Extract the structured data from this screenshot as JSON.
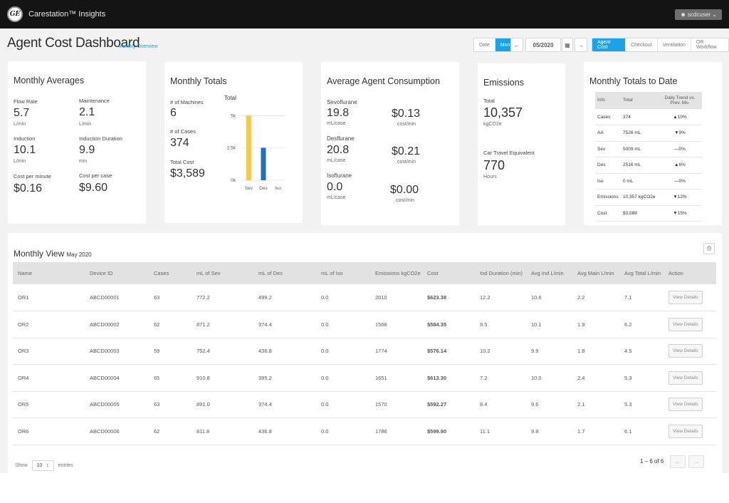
{
  "app": {
    "title": "Carestation™ Insights",
    "user": "scdcuser"
  },
  "header": {
    "title": "Agent Cost Dashboard",
    "subtitle": "Monthly Overview",
    "period_toggle": [
      "Date",
      "Month"
    ],
    "period_active": "Month",
    "date_value": "05/2020",
    "tabs": [
      "Agent Cost",
      "Checkout",
      "Ventilation",
      "OR Workflow"
    ],
    "active_tab": "Agent Cost"
  },
  "monthly_averages": {
    "title": "Monthly Averages",
    "items": [
      {
        "label": "Flow Rate",
        "value": "5.7",
        "unit": "L/min"
      },
      {
        "label": "Maintenance",
        "value": "2.1",
        "unit": "L/min"
      },
      {
        "label": "Induction",
        "value": "10.1",
        "unit": "L/min"
      },
      {
        "label": "Induction Duration",
        "value": "9.9",
        "unit": "min"
      },
      {
        "label": "Cost per minute",
        "value": "$0.16",
        "unit": ""
      },
      {
        "label": "Cost per case",
        "value": "$9.60",
        "unit": ""
      }
    ]
  },
  "monthly_totals": {
    "title": "Monthly Totals",
    "machines_label": "# of Machines",
    "machines": "6",
    "cases_label": "# of Cases",
    "cases": "374",
    "cost_label": "Total Cost",
    "cost": "$3,589"
  },
  "chart_data": {
    "type": "bar",
    "title": "Total",
    "categories": [
      "Sev",
      "Des",
      "Iso"
    ],
    "values": [
      5009,
      2516,
      0
    ],
    "ylim": [
      0,
      5300
    ],
    "yticks": [
      0,
      2500,
      5000
    ],
    "ytick_labels": [
      "0k",
      "2.5k",
      "5k"
    ],
    "colors": [
      "#f7c948",
      "#1f6fc5",
      "#7a5bc2"
    ],
    "grid": true
  },
  "consumption": {
    "title": "Average Agent Consumption",
    "items": [
      {
        "name": "Sevoflurane",
        "value": "19.8",
        "unit": "mL/case",
        "cost": "$0.13",
        "cost_unit": "cost/min"
      },
      {
        "name": "Desflurane",
        "value": "20.8",
        "unit": "mL/case",
        "cost": "$0.21",
        "cost_unit": "cost/min"
      },
      {
        "name": "Isoflurane",
        "value": "0.0",
        "unit": "mL/case",
        "cost": "$0.00",
        "cost_unit": "cost/min"
      }
    ]
  },
  "emissions": {
    "title": "Emissions",
    "total_label": "Total",
    "total": "10,357",
    "total_unit": "kgCO2e",
    "car_label": "Car Travel Equivalent",
    "car": "770",
    "car_unit": "Hours"
  },
  "totals_to_date": {
    "title": "Monthly Totals to Date",
    "headers": [
      "Info",
      "Total",
      "Daily Trend vs. Prev. Mo."
    ],
    "rows": [
      {
        "info": "Cases",
        "total": "374",
        "trend": "▲10%",
        "dir": "up"
      },
      {
        "info": "AA",
        "total": "7526 mL",
        "trend": "▼9%",
        "dir": "down"
      },
      {
        "info": "Sev",
        "total": "5009 mL",
        "trend": "—0%",
        "dir": "flat"
      },
      {
        "info": "Des",
        "total": "2516 mL",
        "trend": "▲6%",
        "dir": "up"
      },
      {
        "info": "Iso",
        "total": "0 mL",
        "trend": "—0%",
        "dir": "flat"
      },
      {
        "info": "Emissions",
        "total": "10,357 kgCO2e",
        "trend": "▼12%",
        "dir": "down"
      },
      {
        "info": "Cost",
        "total": "$3,589",
        "trend": "▼15%",
        "dir": "down"
      }
    ]
  },
  "monthly_view": {
    "title": "Monthly View",
    "period": "May 2020",
    "columns": [
      "Name",
      "Device ID",
      "Cases",
      "mL of Sev",
      "mL of Des",
      "mL of Iso",
      "Emissions kgCO2e",
      "Cost",
      "Ind Duration (min)",
      "Avg Ind L/min",
      "Avg Main L/min",
      "Avg Total L/min",
      "Action"
    ],
    "rows": [
      {
        "name": "OR1",
        "device": "ABCD00001",
        "cases": "63",
        "sev": "772.2",
        "des": "499.2",
        "iso": "0.0",
        "emissions": "2010",
        "cost": "$623.38",
        "ind_dur": "12.2",
        "avg_ind": "10.6",
        "avg_main": "2.2",
        "avg_total": "7.1"
      },
      {
        "name": "OR2",
        "device": "ABCD00002",
        "cases": "62",
        "sev": "871.2",
        "des": "374.4",
        "iso": "0.0",
        "emissions": "1566",
        "cost": "$584.35",
        "ind_dur": "9.5",
        "avg_ind": "10.1",
        "avg_main": "1.9",
        "avg_total": "6.2"
      },
      {
        "name": "OR3",
        "device": "ABCD00003",
        "cases": "59",
        "sev": "752.4",
        "des": "436.8",
        "iso": "0.0",
        "emissions": "1774",
        "cost": "$576.14",
        "ind_dur": "10.2",
        "avg_ind": "9.9",
        "avg_main": "1.8",
        "avg_total": "4.5"
      },
      {
        "name": "OR4",
        "device": "ABCD00004",
        "cases": "65",
        "sev": "910.8",
        "des": "395.2",
        "iso": "0.0",
        "emissions": "1651",
        "cost": "$613.30",
        "ind_dur": "7.2",
        "avg_ind": "10.0",
        "avg_main": "2.4",
        "avg_total": "5.3"
      },
      {
        "name": "OR5",
        "device": "ABCD00005",
        "cases": "63",
        "sev": "891.0",
        "des": "374.4",
        "iso": "0.0",
        "emissions": "1570",
        "cost": "$592.27",
        "ind_dur": "8.4",
        "avg_ind": "9.6",
        "avg_main": "2.1",
        "avg_total": "5.3"
      },
      {
        "name": "OR6",
        "device": "ABCD00006",
        "cases": "62",
        "sev": "811.8",
        "des": "436.8",
        "iso": "0.0",
        "emissions": "1786",
        "cost": "$599.90",
        "ind_dur": "11.1",
        "avg_ind": "9.8",
        "avg_main": "1.7",
        "avg_total": "6.1"
      }
    ],
    "action_label": "View Details",
    "show_label": "Show",
    "entries_value": "10",
    "entries_label": "entries",
    "pagination": "1 – 6 of 6"
  }
}
